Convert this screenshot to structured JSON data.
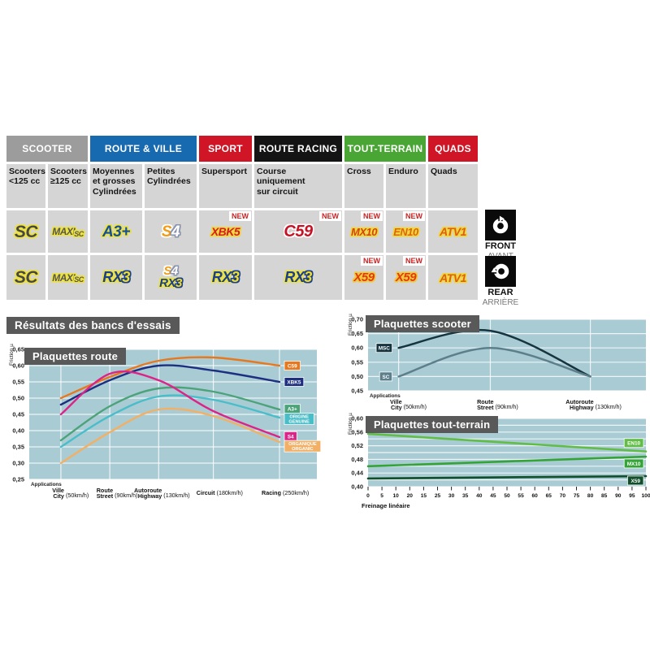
{
  "table": {
    "groups": [
      {
        "label": "SCOOTER",
        "color": "#9c9c9c"
      },
      {
        "label": "ROUTE & VILLE",
        "color": "#1769b0"
      },
      {
        "label": "SPORT",
        "color": "#cf1526"
      },
      {
        "label": "ROUTE RACING",
        "color": "#141414"
      },
      {
        "label": "TOUT-TERRAIN",
        "color": "#49a635"
      },
      {
        "label": "QUADS",
        "color": "#cf1526"
      }
    ],
    "subheaders": [
      "Scooters\n<125 cc",
      "Scooters\n≥125 cc",
      "Moyennes\net grosses\nCylindrées",
      "Petites\nCylindrées",
      "Supersport",
      "Course\nuniquement\nsur circuit",
      "Cross",
      "Enduro",
      "Quads"
    ],
    "new_badge": "NEW",
    "logos": {
      "sc": "SC",
      "maxi": "MAXI",
      "maxi_sc": "SC",
      "a3": "A3+",
      "s4_s": "S",
      "s4_4": "4",
      "xbk5": "XBK5",
      "c59": "C59",
      "mx10": "MX10",
      "en10": "EN10",
      "atv1": "ATV1",
      "rx": "RX",
      "rx3_3": "3",
      "x59": "X59"
    }
  },
  "side": {
    "front": {
      "label": "FRONT",
      "sub": "AVANT"
    },
    "rear": {
      "label": "REAR",
      "sub": "ARRIÈRE"
    }
  },
  "results_title": "Résultats des bancs d'essais",
  "plot_bg": "#a9cbd4",
  "chart_data": [
    {
      "id": "route",
      "type": "line",
      "title": "Plaquettes route",
      "ylabel": "Friction µ",
      "xlabel": "Applications",
      "ylim": [
        0.25,
        0.65
      ],
      "ytick_step": 0.05,
      "grid_step": 0.05,
      "vgrid": true,
      "legend_side": "end",
      "categories": [
        {
          "line1": "Ville",
          "line2": "City",
          "speed": "(50km/h)",
          "x": 0.11
        },
        {
          "line1": "Route",
          "line2": "Street",
          "speed": "(90km/h)",
          "x": 0.28
        },
        {
          "line1": "Autoroute",
          "line2": "Highway",
          "speed": "(130km/h)",
          "x": 0.45
        },
        {
          "line1": "Circuit",
          "speed": "(180km/h)",
          "x": 0.64
        },
        {
          "line1": "Racing",
          "speed": "(250km/h)",
          "x": 0.87
        }
      ],
      "series": [
        {
          "name": "C59",
          "color": "#e8781e",
          "values": [
            0.5,
            0.565,
            0.615,
            0.625,
            0.6
          ],
          "label_lines": [
            "C59"
          ],
          "label_y": 0.6
        },
        {
          "name": "XBK5",
          "color": "#1c2f80",
          "values": [
            0.48,
            0.555,
            0.6,
            0.585,
            0.55
          ],
          "label_lines": [
            "XBK5"
          ],
          "label_y": 0.55
        },
        {
          "name": "A3+",
          "color": "#4da379",
          "values": [
            0.37,
            0.475,
            0.53,
            0.52,
            0.465
          ],
          "label_lines": [
            "A3+"
          ],
          "label_y": 0.467
        },
        {
          "name": "ORIGINE GENUINE",
          "color": "#49bdc8",
          "values": [
            0.35,
            0.445,
            0.505,
            0.495,
            0.44
          ],
          "label_lines": [
            "ORIGINE",
            "GENUINE"
          ],
          "label_y": 0.436
        },
        {
          "name": "S4",
          "color": "#dc2488",
          "values": [
            0.45,
            0.575,
            0.555,
            0.46,
            0.38
          ],
          "label_lines": [
            "S4"
          ],
          "label_y": 0.383
        },
        {
          "name": "ORGANIQUE ORGANIC",
          "color": "#f2b066",
          "values": [
            0.3,
            0.395,
            0.465,
            0.445,
            0.365
          ],
          "label_lines": [
            "ORGANIQUE",
            "ORGANIC"
          ],
          "label_y": 0.352
        }
      ]
    },
    {
      "id": "scooter",
      "type": "line",
      "title": "Plaquettes scooter",
      "ylabel": "Friction µ",
      "xlabel": "Applications",
      "ylim": [
        0.45,
        0.7
      ],
      "ytick_step": 0.05,
      "grid_step": 0.05,
      "vgrid": true,
      "legend_side": "start",
      "categories": [
        {
          "line1": "Ville",
          "line2": "City",
          "speed": "(50km/h)",
          "x": 0.11
        },
        {
          "line1": "Route",
          "line2": "Street",
          "speed": "(90km/h)",
          "x": 0.44
        },
        {
          "line1": "Autoroute",
          "line2": "Highway",
          "speed": "(130km/h)",
          "x": 0.8
        }
      ],
      "series": [
        {
          "name": "MSC",
          "color": "#16343f",
          "values": [
            0.6,
            0.66,
            0.5
          ],
          "label_lines": [
            "MSC"
          ],
          "label_y": 0.6
        },
        {
          "name": "SC",
          "color": "#5c7f8b",
          "values": [
            0.5,
            0.6,
            0.5
          ],
          "label_lines": [
            "SC"
          ],
          "label_y": 0.5
        }
      ]
    },
    {
      "id": "tout_terrain",
      "type": "line",
      "title": "Plaquettes tout-terrain",
      "ylabel": "Friction µ",
      "xlabel": "Freinage linéaire",
      "ylim": [
        0.4,
        0.6
      ],
      "ytick_step": 0.04,
      "grid_step": 0.02,
      "vgrid": false,
      "legend_side": "right",
      "x_ticks": [
        "0",
        "5",
        "10",
        "20",
        "15",
        "25",
        "30",
        "35",
        "40",
        "45",
        "50",
        "55",
        "60",
        "65",
        "70",
        "75",
        "80",
        "85",
        "90",
        "95",
        "100"
      ],
      "series": [
        {
          "name": "EN10",
          "color": "#62bd46",
          "values": [
            0.555,
            0.503
          ],
          "label_lines": [
            "EN10"
          ],
          "label_y": 0.528
        },
        {
          "name": "MX10",
          "color": "#35a437",
          "values": [
            0.46,
            0.488
          ],
          "label_lines": [
            "MX10"
          ],
          "label_y": 0.468
        },
        {
          "name": "X59",
          "color": "#114f2a",
          "values": [
            0.424,
            0.431
          ],
          "label_lines": [
            "X59"
          ],
          "label_y": 0.418
        }
      ]
    }
  ]
}
